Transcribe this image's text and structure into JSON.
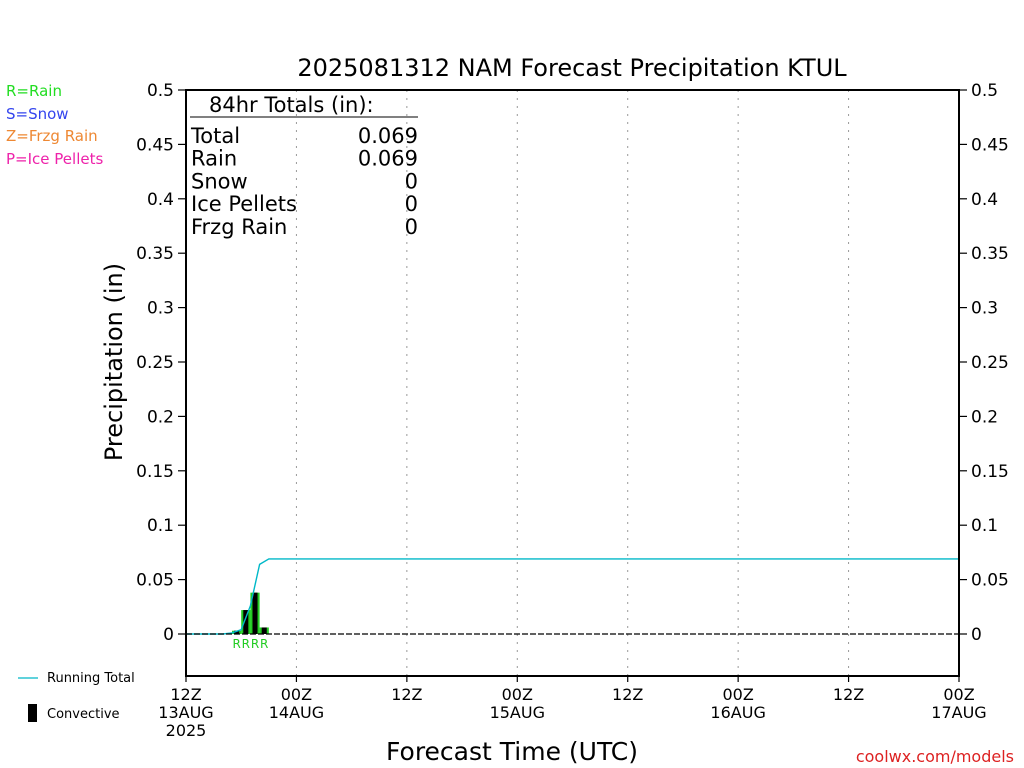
{
  "title": "2025081312 NAM Forecast Precipitation KTUL",
  "watermark": "coolwx.com/models",
  "precip_legend": [
    {
      "label": "R=Rain",
      "color": "#22dd22"
    },
    {
      "label": "S=Snow",
      "color": "#3344ee"
    },
    {
      "label": "Z=Frzg Rain",
      "color": "#ee8833"
    },
    {
      "label": "P=Ice Pellets",
      "color": "#ee22aa"
    }
  ],
  "series_legend": [
    {
      "label": "Running Total",
      "color": "#00b8c8",
      "kind": "line"
    },
    {
      "label": "Convective",
      "color": "#000000",
      "kind": "bar"
    }
  ],
  "totals_box": {
    "heading": "84hr Totals (in):",
    "rows": [
      {
        "label": "Total",
        "value": "0.069"
      },
      {
        "label": "Rain",
        "value": "0.069"
      },
      {
        "label": "Snow",
        "value": "0"
      },
      {
        "label": "Ice Pellets",
        "value": "0"
      },
      {
        "label": "Frzg Rain",
        "value": "0"
      }
    ]
  },
  "chart_data": {
    "type": "bar",
    "title": "2025081312 NAM Forecast Precipitation KTUL",
    "xlabel": "Forecast Time (UTC)",
    "ylabel": "Precipitation (in)",
    "xlim_hours": [
      0,
      84
    ],
    "ylim": [
      -0.04,
      0.5
    ],
    "yticks": [
      0,
      0.05,
      0.1,
      0.15,
      0.2,
      0.25,
      0.3,
      0.35,
      0.4,
      0.45,
      0.5
    ],
    "yticks_labels": [
      "0",
      "0.05",
      "0.1",
      "0.15",
      "0.2",
      "0.25",
      "0.3",
      "0.35",
      "0.4",
      "0.45",
      "0.5"
    ],
    "xticks": [
      {
        "hour": 0,
        "lines": [
          "12Z",
          "13AUG",
          "2025"
        ]
      },
      {
        "hour": 12,
        "lines": [
          "00Z",
          "14AUG"
        ]
      },
      {
        "hour": 24,
        "lines": [
          "12Z"
        ]
      },
      {
        "hour": 36,
        "lines": [
          "00Z",
          "15AUG"
        ]
      },
      {
        "hour": 48,
        "lines": [
          "12Z"
        ]
      },
      {
        "hour": 60,
        "lines": [
          "00Z",
          "16AUG"
        ]
      },
      {
        "hour": 72,
        "lines": [
          "12Z"
        ]
      },
      {
        "hour": 84,
        "lines": [
          "00Z",
          "17AUG"
        ]
      }
    ],
    "grid": "vertical dotted at each tick",
    "bars": [
      {
        "hour": 6,
        "total": 0.003,
        "convective": 0.003,
        "type": "R"
      },
      {
        "hour": 7,
        "total": 0.022,
        "convective": 0.022,
        "type": "R"
      },
      {
        "hour": 8,
        "total": 0.038,
        "convective": 0.038,
        "type": "R"
      },
      {
        "hour": 9,
        "total": 0.006,
        "convective": 0.006,
        "type": "R"
      }
    ],
    "running_total": [
      {
        "hour": 0,
        "value": 0
      },
      {
        "hour": 4,
        "value": 0
      },
      {
        "hour": 5,
        "value": 0.001
      },
      {
        "hour": 6,
        "value": 0.004
      },
      {
        "hour": 7,
        "value": 0.026
      },
      {
        "hour": 8,
        "value": 0.064
      },
      {
        "hour": 9,
        "value": 0.069
      },
      {
        "hour": 84,
        "value": 0.069
      }
    ]
  }
}
